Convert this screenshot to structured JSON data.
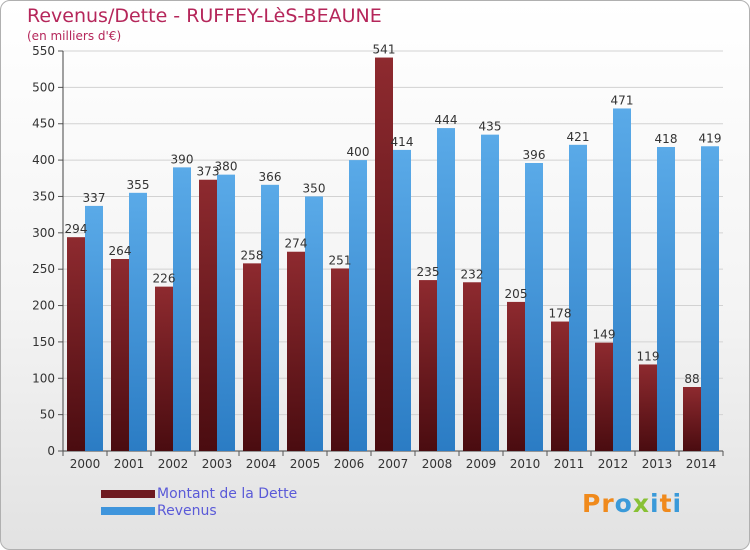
{
  "title": "Revenus/Dette - RUFFEY-LèS-BEAUNE",
  "subtitle": "(en milliers d'€)",
  "colors": {
    "title": "#b5265a",
    "dette_top": "#8e2a2f",
    "dette_bottom": "#4a0c10",
    "revenus_top": "#5aaae8",
    "revenus_bottom": "#2b7cc4",
    "legend_text": "#5a5ad8"
  },
  "legend": {
    "items": [
      {
        "label": "Montant de la Dette",
        "color": "#6e1a20"
      },
      {
        "label": "Revenus",
        "color": "#3f95dc"
      }
    ]
  },
  "logo": {
    "letters": [
      "P",
      "r",
      "o",
      "x",
      "i",
      "t",
      "i"
    ],
    "colors": [
      "#f08a1c",
      "#f08a1c",
      "#3a9ad9",
      "#88c135",
      "#3a9ad9",
      "#f08a1c",
      "#3a9ad9"
    ]
  },
  "chart_data": {
    "type": "bar",
    "categories": [
      "2000",
      "2001",
      "2002",
      "2003",
      "2004",
      "2005",
      "2006",
      "2007",
      "2008",
      "2009",
      "2010",
      "2011",
      "2012",
      "2013",
      "2014"
    ],
    "series": [
      {
        "name": "Montant de la Dette",
        "values": [
          294,
          264,
          226,
          373,
          258,
          274,
          251,
          541,
          235,
          232,
          205,
          178,
          149,
          119,
          88
        ]
      },
      {
        "name": "Revenus",
        "values": [
          337,
          355,
          390,
          380,
          366,
          350,
          400,
          414,
          444,
          435,
          396,
          421,
          471,
          418,
          419
        ]
      }
    ],
    "ylim": [
      0,
      550
    ],
    "yticks": [
      0,
      50,
      100,
      150,
      200,
      250,
      300,
      350,
      400,
      450,
      500,
      550
    ],
    "grid": true,
    "legend_position": "bottom-left"
  }
}
